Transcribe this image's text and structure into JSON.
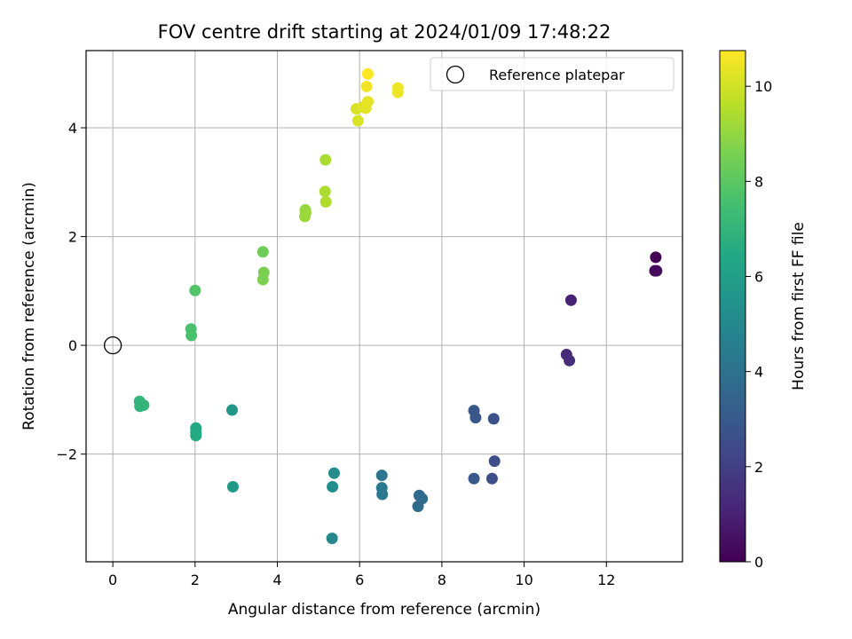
{
  "chart_data": {
    "type": "scatter",
    "title": "FOV centre drift starting at 2024/01/09 17:48:22",
    "xlabel": "Angular distance from reference (arcmin)",
    "ylabel": "Rotation from reference (arcmin)",
    "xlim": [
      -0.65,
      13.85
    ],
    "ylim": [
      -3.98,
      5.42
    ],
    "xticks": [
      0,
      2,
      4,
      6,
      8,
      10,
      12
    ],
    "yticks": [
      -2,
      0,
      2,
      4
    ],
    "ytick_labels": [
      "−2",
      "0",
      "2",
      "4"
    ],
    "grid": true,
    "legend": {
      "position": "top-right",
      "entries": [
        "Reference platepar"
      ]
    },
    "reference_point": {
      "x": 0,
      "y": 0
    },
    "colorbar": {
      "label": "Hours from first FF file",
      "range": [
        0,
        10.75
      ],
      "ticks": [
        0,
        2,
        4,
        6,
        8,
        10
      ],
      "colormap": "viridis"
    },
    "points": [
      {
        "x": 13.2,
        "y": 1.62,
        "hours": 0.0
      },
      {
        "x": 13.18,
        "y": 1.37,
        "hours": 0.2
      },
      {
        "x": 13.22,
        "y": 1.37,
        "hours": 0.3
      },
      {
        "x": 11.14,
        "y": 0.83,
        "hours": 1.05
      },
      {
        "x": 11.03,
        "y": -0.17,
        "hours": 1.3
      },
      {
        "x": 11.1,
        "y": -0.28,
        "hours": 1.4
      },
      {
        "x": 9.28,
        "y": -2.13,
        "hours": 2.55
      },
      {
        "x": 9.26,
        "y": -1.35,
        "hours": 2.65
      },
      {
        "x": 9.22,
        "y": -2.45,
        "hours": 2.6
      },
      {
        "x": 8.78,
        "y": -1.2,
        "hours": 2.9
      },
      {
        "x": 8.82,
        "y": -1.33,
        "hours": 2.95
      },
      {
        "x": 8.78,
        "y": -2.45,
        "hours": 3.0
      },
      {
        "x": 7.45,
        "y": -2.76,
        "hours": 3.7
      },
      {
        "x": 7.52,
        "y": -2.82,
        "hours": 3.8
      },
      {
        "x": 7.42,
        "y": -2.96,
        "hours": 3.75
      },
      {
        "x": 6.54,
        "y": -2.39,
        "hours": 4.2
      },
      {
        "x": 6.54,
        "y": -2.62,
        "hours": 4.3
      },
      {
        "x": 6.55,
        "y": -2.74,
        "hours": 4.35
      },
      {
        "x": 5.38,
        "y": -2.35,
        "hours": 5.2
      },
      {
        "x": 5.34,
        "y": -2.6,
        "hours": 5.3
      },
      {
        "x": 5.33,
        "y": -3.55,
        "hours": 5.0
      },
      {
        "x": 2.92,
        "y": -2.6,
        "hours": 5.75
      },
      {
        "x": 2.9,
        "y": -1.19,
        "hours": 5.65
      },
      {
        "x": 2.02,
        "y": -1.52,
        "hours": 6.45
      },
      {
        "x": 2.02,
        "y": -1.6,
        "hours": 6.5
      },
      {
        "x": 2.02,
        "y": -1.66,
        "hours": 6.55
      },
      {
        "x": 0.65,
        "y": -1.03,
        "hours": 7.0
      },
      {
        "x": 0.75,
        "y": -1.1,
        "hours": 7.1
      },
      {
        "x": 0.66,
        "y": -1.12,
        "hours": 6.95
      },
      {
        "x": 1.9,
        "y": 0.3,
        "hours": 7.6
      },
      {
        "x": 1.91,
        "y": 0.18,
        "hours": 7.65
      },
      {
        "x": 2.0,
        "y": 1.01,
        "hours": 7.8
      },
      {
        "x": 3.65,
        "y": 1.72,
        "hours": 8.35
      },
      {
        "x": 3.67,
        "y": 1.34,
        "hours": 8.55
      },
      {
        "x": 3.65,
        "y": 1.21,
        "hours": 8.6
      },
      {
        "x": 4.68,
        "y": 2.49,
        "hours": 9.05
      },
      {
        "x": 4.69,
        "y": 2.44,
        "hours": 9.1
      },
      {
        "x": 4.67,
        "y": 2.37,
        "hours": 9.15
      },
      {
        "x": 5.17,
        "y": 3.41,
        "hours": 9.35
      },
      {
        "x": 5.16,
        "y": 2.83,
        "hours": 9.4
      },
      {
        "x": 5.18,
        "y": 2.64,
        "hours": 9.45
      },
      {
        "x": 5.92,
        "y": 4.35,
        "hours": 10.1
      },
      {
        "x": 5.96,
        "y": 4.13,
        "hours": 10.15
      },
      {
        "x": 6.08,
        "y": 4.38,
        "hours": 10.25
      },
      {
        "x": 6.15,
        "y": 4.36,
        "hours": 10.3
      },
      {
        "x": 6.2,
        "y": 4.48,
        "hours": 10.35
      },
      {
        "x": 6.17,
        "y": 4.76,
        "hours": 10.55
      },
      {
        "x": 6.2,
        "y": 4.99,
        "hours": 10.75
      },
      {
        "x": 6.93,
        "y": 4.73,
        "hours": 10.5
      },
      {
        "x": 6.93,
        "y": 4.65,
        "hours": 10.45
      }
    ]
  }
}
